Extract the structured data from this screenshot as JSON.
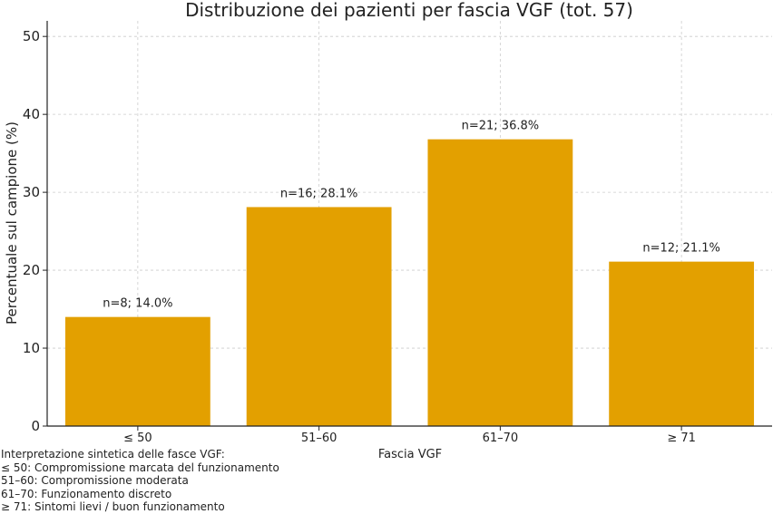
{
  "chart_data": {
    "type": "bar",
    "title": "Distribuzione dei pazienti per fascia VGF (tot. 57)",
    "xlabel": "Fascia VGF",
    "ylabel": "Percentuale sul campione (%)",
    "categories": [
      "≤ 50",
      "51–60",
      "61–70",
      "≥ 71"
    ],
    "values": [
      14.0,
      28.1,
      36.8,
      21.1
    ],
    "data_labels": [
      "n=8; 14.0%",
      "n=16; 28.1%",
      "n=21; 36.8%",
      "n=12; 21.1%"
    ],
    "ylim": [
      0,
      52
    ],
    "yticks": [
      "0",
      "10",
      "20",
      "30",
      "40",
      "50"
    ],
    "ytick_values": [
      0,
      10,
      20,
      30,
      40,
      50
    ],
    "grid": true,
    "bar_color": "#E3A000"
  },
  "notes": {
    "title": "Interpretazione sintetica delle fasce VGF:",
    "lines": [
      "≤ 50: Compromissione marcata del funzionamento",
      "51–60: Compromissione moderata",
      "61–70: Funzionamento discreto",
      "≥ 71: Sintomi lievi / buon funzionamento"
    ]
  }
}
